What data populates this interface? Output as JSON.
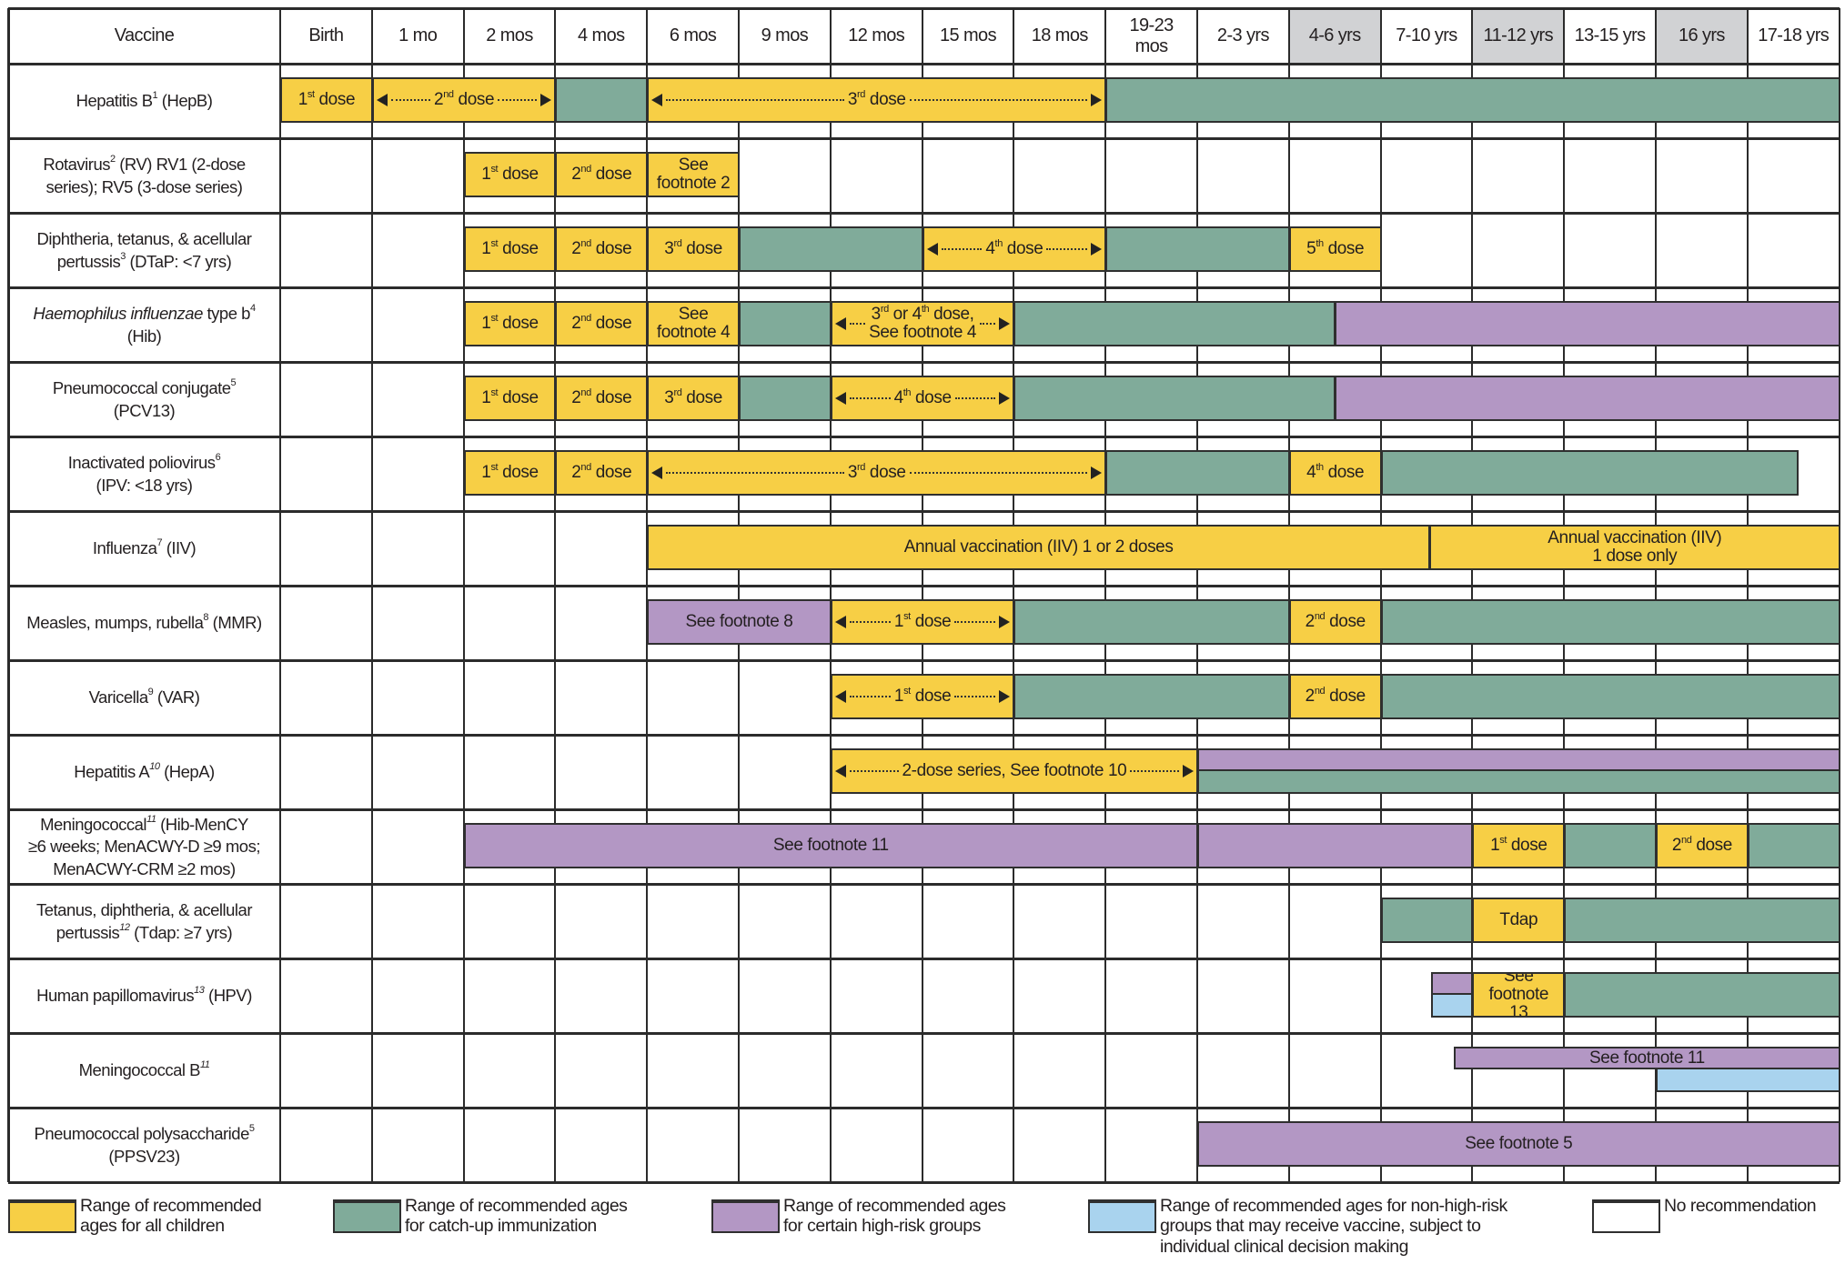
{
  "colors": {
    "recommended": "#f7cf45",
    "catch-up": "#80ab9a",
    "high-risk": "#b397c4",
    "non-high-risk": "#a9d3ee",
    "none": "#ffffff",
    "header_shade": "#d1d2d4"
  },
  "header": {
    "vaccine_label": "Vaccine",
    "ages": [
      {
        "label": "Birth"
      },
      {
        "label": "1 mo"
      },
      {
        "label": "2 mos"
      },
      {
        "label": "4 mos"
      },
      {
        "label": "6 mos"
      },
      {
        "label": "9 mos"
      },
      {
        "label": "12 mos"
      },
      {
        "label": "15 mos"
      },
      {
        "label": "18 mos"
      },
      {
        "label": "19-23\nmos"
      },
      {
        "label": "2-3 yrs"
      },
      {
        "label": "4-6 yrs",
        "shaded": true
      },
      {
        "label": "7-10 yrs"
      },
      {
        "label": "11-12 yrs",
        "shaded": true
      },
      {
        "label": "13-15 yrs"
      },
      {
        "label": "16 yrs",
        "shaded": true
      },
      {
        "label": "17-18 yrs"
      }
    ]
  },
  "rows": [
    {
      "label_parts": [
        {
          "t": "Hepatitis B"
        },
        {
          "t": "1",
          "sup": true
        },
        {
          "t": " (HepB)"
        }
      ],
      "bars": [
        {
          "start": 0,
          "end": 1,
          "type": "recommended",
          "label": "1st dose"
        },
        {
          "start": 1,
          "end": 3,
          "type": "recommended",
          "label": "2nd dose",
          "arrows": true
        },
        {
          "start": 3,
          "end": 4,
          "type": "catch-up"
        },
        {
          "start": 4,
          "end": 9,
          "type": "recommended",
          "label": "3rd dose",
          "arrows": true
        },
        {
          "start": 9,
          "end": 17,
          "type": "catch-up"
        }
      ]
    },
    {
      "label_parts": [
        {
          "t": "Rotavirus"
        },
        {
          "t": "2",
          "sup": true
        },
        {
          "t": " (RV) RV1 (2-dose\nseries); RV5 (3-dose series)"
        }
      ],
      "bars": [
        {
          "start": 2,
          "end": 3,
          "type": "recommended",
          "label": "1st dose"
        },
        {
          "start": 3,
          "end": 4,
          "type": "recommended",
          "label": "2nd dose"
        },
        {
          "start": 4,
          "end": 5,
          "type": "recommended",
          "label": "See\nfootnote 2"
        }
      ]
    },
    {
      "label_parts": [
        {
          "t": "Diphtheria, tetanus, & acellular\npertussis"
        },
        {
          "t": "3",
          "sup": true
        },
        {
          "t": " (DTaP: <7 yrs)"
        }
      ],
      "bars": [
        {
          "start": 2,
          "end": 3,
          "type": "recommended",
          "label": "1st dose"
        },
        {
          "start": 3,
          "end": 4,
          "type": "recommended",
          "label": "2nd dose"
        },
        {
          "start": 4,
          "end": 5,
          "type": "recommended",
          "label": "3rd dose"
        },
        {
          "start": 5,
          "end": 7,
          "type": "catch-up"
        },
        {
          "start": 7,
          "end": 9,
          "type": "recommended",
          "label": "4th dose",
          "arrows": true
        },
        {
          "start": 9,
          "end": 11,
          "type": "catch-up"
        },
        {
          "start": 11,
          "end": 12,
          "type": "recommended",
          "label": "5th dose"
        }
      ]
    },
    {
      "label_parts": [
        {
          "t": "Haemophilus influenzae",
          "italic": true
        },
        {
          "t": " type b"
        },
        {
          "t": "4",
          "sup": true
        },
        {
          "t": "\n(Hib)"
        }
      ],
      "bars": [
        {
          "start": 2,
          "end": 3,
          "type": "recommended",
          "label": "1st dose"
        },
        {
          "start": 3,
          "end": 4,
          "type": "recommended",
          "label": "2nd dose"
        },
        {
          "start": 4,
          "end": 5,
          "type": "recommended",
          "label": "See\nfootnote 4"
        },
        {
          "start": 5,
          "end": 6,
          "type": "catch-up"
        },
        {
          "start": 6,
          "end": 8,
          "type": "recommended",
          "label": "3rd or 4th dose,\nSee footnote 4",
          "arrows": true
        },
        {
          "start": 8,
          "end": 11.5,
          "type": "catch-up"
        },
        {
          "start": 11.5,
          "end": 17,
          "type": "high-risk"
        }
      ]
    },
    {
      "label_parts": [
        {
          "t": "Pneumococcal conjugate"
        },
        {
          "t": "5",
          "sup": true
        },
        {
          "t": "\n(PCV13)"
        }
      ],
      "bars": [
        {
          "start": 2,
          "end": 3,
          "type": "recommended",
          "label": "1st dose"
        },
        {
          "start": 3,
          "end": 4,
          "type": "recommended",
          "label": "2nd dose"
        },
        {
          "start": 4,
          "end": 5,
          "type": "recommended",
          "label": "3rd dose"
        },
        {
          "start": 5,
          "end": 6,
          "type": "catch-up"
        },
        {
          "start": 6,
          "end": 8,
          "type": "recommended",
          "label": "4th dose",
          "arrows": true
        },
        {
          "start": 8,
          "end": 11.5,
          "type": "catch-up"
        },
        {
          "start": 11.5,
          "end": 17,
          "type": "high-risk"
        }
      ]
    },
    {
      "label_parts": [
        {
          "t": "Inactivated poliovirus"
        },
        {
          "t": "6",
          "sup": true
        },
        {
          "t": "\n(IPV: <18 yrs)"
        }
      ],
      "bars": [
        {
          "start": 2,
          "end": 3,
          "type": "recommended",
          "label": "1st dose"
        },
        {
          "start": 3,
          "end": 4,
          "type": "recommended",
          "label": "2nd dose"
        },
        {
          "start": 4,
          "end": 9,
          "type": "recommended",
          "label": "3rd dose",
          "arrows": true
        },
        {
          "start": 9,
          "end": 11,
          "type": "catch-up"
        },
        {
          "start": 11,
          "end": 12,
          "type": "recommended",
          "label": "4th dose"
        },
        {
          "start": 12,
          "end": 16.55,
          "type": "catch-up"
        }
      ]
    },
    {
      "label_parts": [
        {
          "t": "Influenza"
        },
        {
          "t": "7",
          "sup": true
        },
        {
          "t": " (IIV)"
        }
      ],
      "bars": [
        {
          "start": 4,
          "end": 12.53,
          "type": "recommended",
          "label": "Annual vaccination (IIV) 1 or 2 doses"
        },
        {
          "start": 12.53,
          "end": 17,
          "type": "recommended",
          "label": "Annual vaccination (IIV)\n1 dose only"
        }
      ]
    },
    {
      "label_parts": [
        {
          "t": "Measles, mumps, rubella"
        },
        {
          "t": "8",
          "sup": true
        },
        {
          "t": " (MMR)"
        }
      ],
      "bars": [
        {
          "start": 4,
          "end": 6,
          "type": "high-risk",
          "label": "See footnote 8"
        },
        {
          "start": 6,
          "end": 8,
          "type": "recommended",
          "label": "1st dose",
          "arrows": true
        },
        {
          "start": 8,
          "end": 11,
          "type": "catch-up"
        },
        {
          "start": 11,
          "end": 12,
          "type": "recommended",
          "label": "2nd dose"
        },
        {
          "start": 12,
          "end": 17,
          "type": "catch-up"
        }
      ]
    },
    {
      "label_parts": [
        {
          "t": "Varicella"
        },
        {
          "t": "9",
          "sup": true
        },
        {
          "t": " (VAR)"
        }
      ],
      "bars": [
        {
          "start": 6,
          "end": 8,
          "type": "recommended",
          "label": "1st dose",
          "arrows": true
        },
        {
          "start": 8,
          "end": 11,
          "type": "catch-up"
        },
        {
          "start": 11,
          "end": 12,
          "type": "recommended",
          "label": "2nd dose"
        },
        {
          "start": 12,
          "end": 17,
          "type": "catch-up"
        }
      ]
    },
    {
      "label_parts": [
        {
          "t": "Hepatitis A"
        },
        {
          "t": "10",
          "sup": true,
          "italic": true
        },
        {
          "t": " (HepA)"
        }
      ],
      "bars": [
        {
          "start": 6,
          "end": 10,
          "type": "recommended",
          "label": "2-dose series, See footnote 10",
          "arrows": true
        },
        {
          "start": 10,
          "end": 17,
          "type": "high-risk",
          "part": "top"
        },
        {
          "start": 10,
          "end": 17,
          "type": "catch-up",
          "part": "bottom"
        }
      ]
    },
    {
      "label_parts": [
        {
          "t": "Meningococcal"
        },
        {
          "t": "11",
          "sup": true,
          "italic": true
        },
        {
          "t": " (Hib-MenCY\n≥6 weeks; MenACWY-D ≥9 mos;\nMenACWY-CRM ≥2 mos)"
        }
      ],
      "bars": [
        {
          "start": 2,
          "end": 10,
          "type": "high-risk",
          "label": "See footnote 11"
        },
        {
          "start": 10,
          "end": 13,
          "type": "high-risk"
        },
        {
          "start": 13,
          "end": 14,
          "type": "recommended",
          "label": "1st dose"
        },
        {
          "start": 14,
          "end": 15,
          "type": "catch-up"
        },
        {
          "start": 15,
          "end": 16,
          "type": "recommended",
          "label": "2nd dose"
        },
        {
          "start": 16,
          "end": 17,
          "type": "catch-up"
        }
      ]
    },
    {
      "label_parts": [
        {
          "t": "Tetanus, diphtheria, & acellular\npertussis"
        },
        {
          "t": "12",
          "sup": true,
          "italic": true
        },
        {
          "t": " (Tdap: ≥7 yrs)"
        }
      ],
      "bars": [
        {
          "start": 12,
          "end": 13,
          "type": "catch-up"
        },
        {
          "start": 13,
          "end": 14,
          "type": "recommended",
          "label": "Tdap"
        },
        {
          "start": 14,
          "end": 17,
          "type": "catch-up"
        }
      ]
    },
    {
      "label_parts": [
        {
          "t": "Human papillomavirus"
        },
        {
          "t": "13",
          "sup": true,
          "italic": true
        },
        {
          "t": " (HPV)"
        }
      ],
      "bars": [
        {
          "start": 12.55,
          "end": 13,
          "type": "high-risk",
          "part": "top"
        },
        {
          "start": 12.55,
          "end": 13,
          "type": "non-high-risk",
          "part": "bottom"
        },
        {
          "start": 13,
          "end": 14,
          "type": "recommended",
          "label": "See footnote\n13"
        },
        {
          "start": 14,
          "end": 17,
          "type": "catch-up"
        }
      ]
    },
    {
      "label_parts": [
        {
          "t": "Meningococcal B"
        },
        {
          "t": "11",
          "sup": true,
          "italic": true
        }
      ],
      "bars": [
        {
          "start": 12.8,
          "end": 17,
          "type": "high-risk",
          "part": "top",
          "label": "See footnote 11"
        },
        {
          "start": 15,
          "end": 17,
          "type": "non-high-risk",
          "part": "bottom"
        }
      ]
    },
    {
      "label_parts": [
        {
          "t": "Pneumococcal polysaccharide"
        },
        {
          "t": "5",
          "sup": true
        },
        {
          "t": "\n(PPSV23)"
        }
      ],
      "bars": [
        {
          "start": 10,
          "end": 17,
          "type": "high-risk",
          "label": "See footnote 5"
        }
      ]
    }
  ],
  "legend": [
    {
      "type": "recommended",
      "label": "Range of recommended\nages for all children"
    },
    {
      "type": "catch-up",
      "label": "Range of recommended ages\nfor catch-up immunization"
    },
    {
      "type": "high-risk",
      "label": "Range of recommended ages\nfor certain high-risk groups"
    },
    {
      "type": "non-high-risk",
      "label": "Range of recommended ages for non-high-risk\ngroups that may receive vaccine, subject to\nindividual clinical decision making"
    },
    {
      "type": "none",
      "label": "No recommendation"
    }
  ]
}
